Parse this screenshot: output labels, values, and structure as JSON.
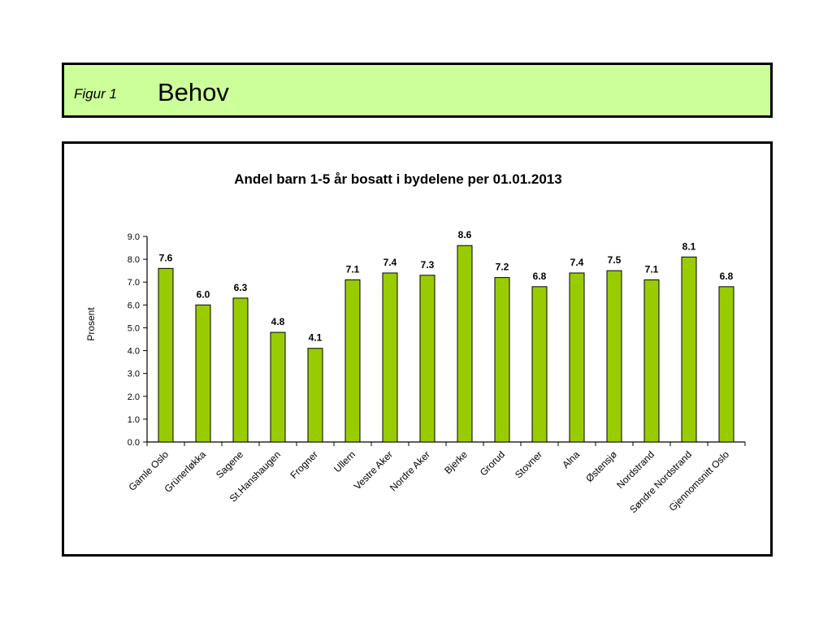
{
  "header": {
    "figure_label": "Figur 1",
    "title": "Behov"
  },
  "chart_data": {
    "type": "bar",
    "title": "Andel barn 1-5 år bosatt i bydelene per 01.01.2013",
    "xlabel": "",
    "ylabel": "Prosent",
    "ylim": [
      0,
      9
    ],
    "yticks": [
      "0.0",
      "1.0",
      "2.0",
      "3.0",
      "4.0",
      "5.0",
      "6.0",
      "7.0",
      "8.0",
      "9.0"
    ],
    "grid": false,
    "legend": "none",
    "bar_color": "#99cc00",
    "categories": [
      "Gamle Oslo",
      "Grünerløkka",
      "Sagene",
      "St.Hanshaugen",
      "Frogner",
      "Ullern",
      "Vestre Aker",
      "Nordre Aker",
      "Bjerke",
      "Grorud",
      "Stovner",
      "Alna",
      "Østensjø",
      "Nordstrand",
      "Søndre Nordstrand",
      "Gjennomsnitt Oslo"
    ],
    "values": [
      7.6,
      6.0,
      6.3,
      4.8,
      4.1,
      7.1,
      7.4,
      7.3,
      8.6,
      7.2,
      6.8,
      7.4,
      7.5,
      7.1,
      8.1,
      6.8
    ],
    "value_labels": [
      "7.6",
      "6.0",
      "6.3",
      "4.8",
      "4.1",
      "7.1",
      "7.4",
      "7.3",
      "8.6",
      "7.2",
      "6.8",
      "7.4",
      "7.5",
      "7.1",
      "8.1",
      "6.8"
    ]
  }
}
